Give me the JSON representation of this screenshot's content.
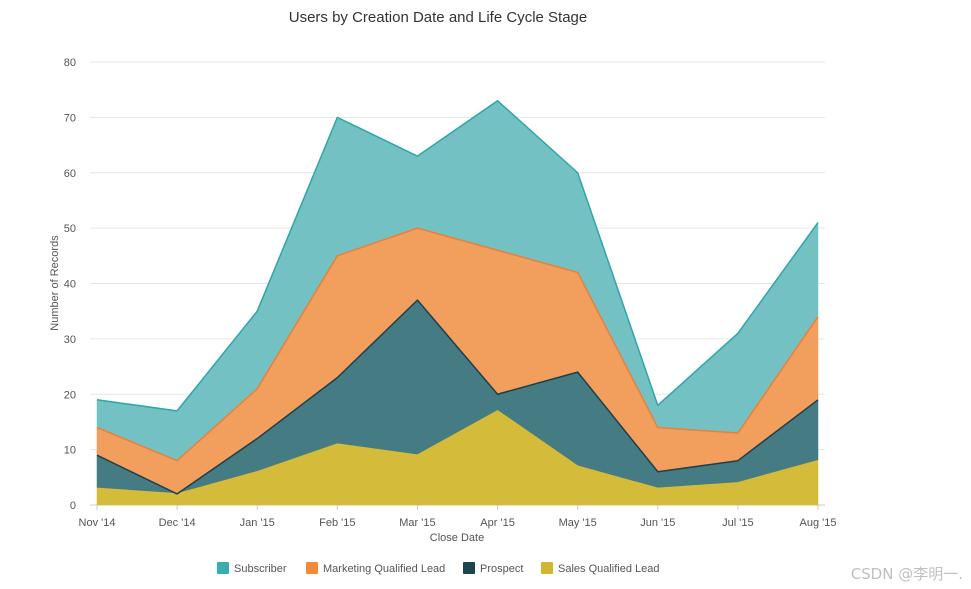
{
  "chart_data": {
    "type": "area",
    "stacked": true,
    "title": "Users by Creation Date and Life Cycle Stage",
    "xlabel": "Close Date",
    "ylabel": "Number of Records",
    "ylim": [
      0,
      80
    ],
    "yticks": [
      0,
      10,
      20,
      30,
      40,
      50,
      60,
      70,
      80
    ],
    "categories": [
      "Nov '14",
      "Dec '14",
      "Jan '15",
      "Feb '15",
      "Mar '15",
      "Apr '15",
      "May '15",
      "Jun '15",
      "Jul '15",
      "Aug '15"
    ],
    "series": [
      {
        "name": "Sales Qualified Lead",
        "color": "#d4bb3a",
        "values": [
          3,
          2,
          6,
          11,
          9,
          17,
          7,
          3,
          4,
          8
        ]
      },
      {
        "name": "Prospect",
        "color": "#457b82",
        "line_color": "#1d3f4b",
        "values": [
          6,
          0,
          6,
          12,
          28,
          3,
          17,
          3,
          4,
          11
        ]
      },
      {
        "name": "Marketing Qualified Lead",
        "color": "#f29e5d",
        "line_color": "#ea7f3a",
        "values": [
          5,
          6,
          9,
          22,
          13,
          26,
          18,
          8,
          5,
          15
        ]
      },
      {
        "name": "Subscriber",
        "color": "#74c1c4",
        "line_color": "#2ea6a9",
        "values": [
          5,
          9,
          14,
          25,
          13,
          27,
          18,
          4,
          18,
          17
        ]
      }
    ],
    "legend": {
      "position": "bottom",
      "items": [
        {
          "name": "Subscriber",
          "color": "#3aabb0"
        },
        {
          "name": "Marketing Qualified Lead",
          "color": "#f38b3e"
        },
        {
          "name": "Prospect",
          "color": "#1d4452"
        },
        {
          "name": "Sales Qualified Lead",
          "color": "#d2b530"
        }
      ]
    }
  },
  "watermark": "CSDN @李明一."
}
